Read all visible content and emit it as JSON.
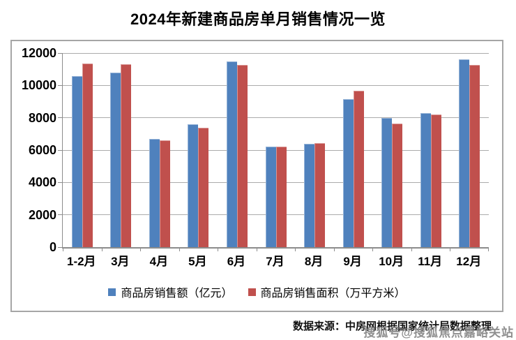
{
  "title": "2024年新建商品房单月销售情况一览",
  "source_note": "数据来源：中房网根据国家统计局数据整理",
  "watermark": "搜狐号@搜狐焦点嘉峪关站",
  "colors": {
    "series_sales_amount": "#4F81BD",
    "series_sales_area": "#C0504D",
    "gridline": "#ABABAB",
    "axis_line": "#8C8C8C",
    "chart_border": "#A6A6A6",
    "title_text": "#000000",
    "watermark_text": "#8F8F8F"
  },
  "chart_data": {
    "type": "bar",
    "title": "2024年新建商品房单月销售情况一览",
    "categories": [
      "1-2月",
      "3月",
      "4月",
      "5月",
      "6月",
      "7月",
      "8月",
      "9月",
      "10月",
      "11月",
      "12月"
    ],
    "series": [
      {
        "name": "商品房销售额（亿元）",
        "color": "#4F81BD",
        "values": [
          10566,
          10789,
          6712,
          7598,
          11468,
          6197,
          6393,
          9157,
          7975,
          8270,
          11625
        ]
      },
      {
        "name": "商品房销售面积（万平方米）",
        "color": "#C0504D",
        "values": [
          11369,
          11299,
          6584,
          7390,
          11274,
          6233,
          6453,
          9682,
          7646,
          8188,
          11267
        ]
      }
    ],
    "xlabel": "",
    "ylabel": "",
    "ylim": [
      0,
      12000
    ],
    "ytick_step": 2000,
    "yticks": [
      0,
      2000,
      4000,
      6000,
      8000,
      10000,
      12000
    ],
    "grid": true,
    "legend_position": "bottom"
  }
}
